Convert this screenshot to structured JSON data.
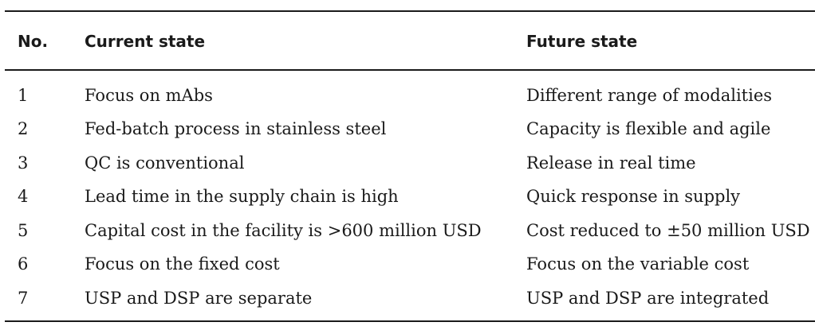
{
  "table": {
    "headers": {
      "no": "No.",
      "current": "Current state",
      "future": "Future state"
    },
    "rows": [
      {
        "no": "1",
        "current": "Focus on mAbs",
        "future": "Different range of modalities"
      },
      {
        "no": "2",
        "current": "Fed-batch process in stainless steel",
        "future": "Capacity is flexible and agile"
      },
      {
        "no": "3",
        "current": "QC is conventional",
        "future": "Release in real time"
      },
      {
        "no": "4",
        "current": "Lead time in the supply chain is high",
        "future": "Quick response in supply"
      },
      {
        "no": "5",
        "current": "Capital cost in the facility is >600 million USD",
        "future": "Cost reduced to ±50 million USD"
      },
      {
        "no": "6",
        "current": "Focus on the fixed cost",
        "future": "Focus on the variable cost"
      },
      {
        "no": "7",
        "current": "USP and DSP are separate",
        "future": "USP and DSP are integrated"
      }
    ]
  }
}
